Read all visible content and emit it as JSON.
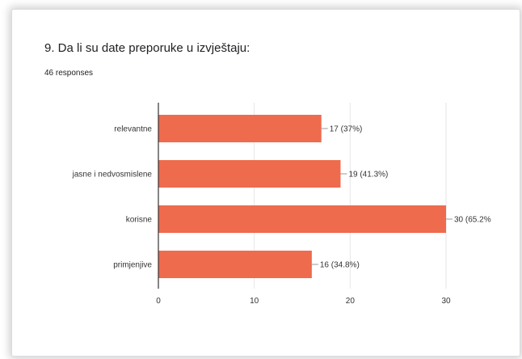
{
  "question": {
    "title": "9. Da li su date preporuke u izvještaju:",
    "responses": "46 responses"
  },
  "chart_data": {
    "type": "bar",
    "orientation": "horizontal",
    "categories": [
      "relevantne",
      "jasne i nedvosmislene",
      "korisne",
      "primjenjive"
    ],
    "values": [
      17,
      19,
      30,
      16
    ],
    "data_labels": [
      "17 (37%)",
      "19 (41.3%)",
      "30 (65.2%",
      "16 (34.8%)"
    ],
    "xlim": [
      0,
      30
    ],
    "ticks": [
      0,
      10,
      20,
      30
    ],
    "grid": true,
    "legend": "none",
    "bar_color": "#ee6b4e",
    "grid_color": "#e6e6e6",
    "axis_color": "#333333"
  }
}
